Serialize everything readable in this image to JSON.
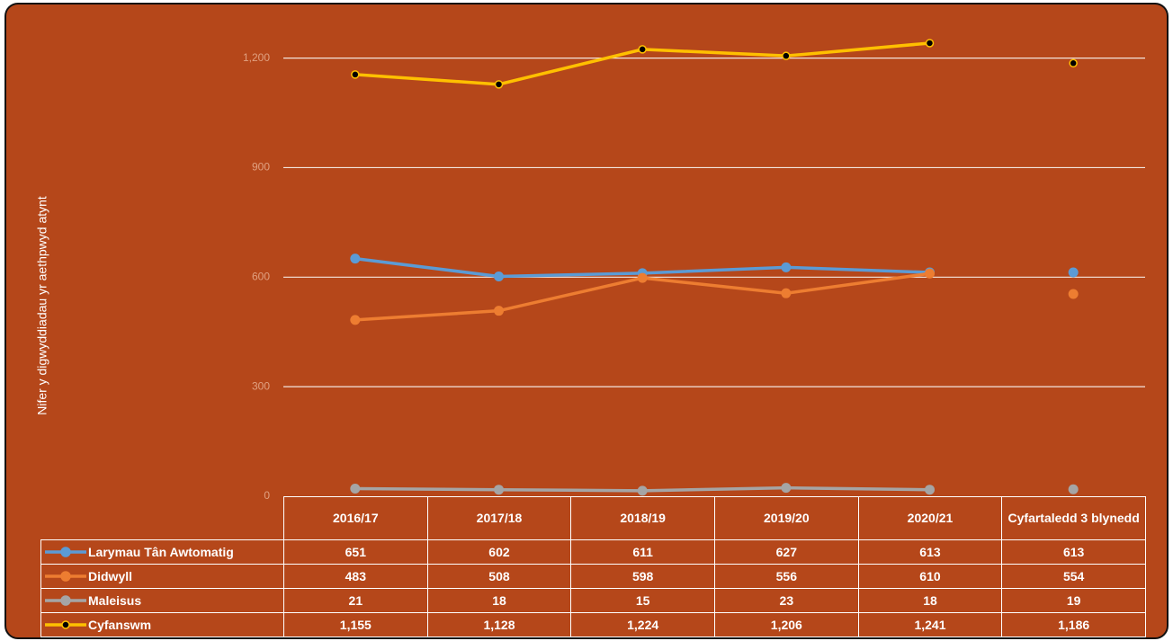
{
  "chart_data": {
    "type": "line",
    "y_label": "Nifer y digwyddiadau yr aethpwyd atynt",
    "categories": [
      "2016/17",
      "2017/18",
      "2018/19",
      "2019/20",
      "2020/21",
      "Cyfartaledd 3 blynedd"
    ],
    "series": [
      {
        "name": "Larymau Tân Awtomatig",
        "color": "#5b9bd5",
        "values": [
          651,
          602,
          611,
          627,
          613,
          613
        ]
      },
      {
        "name": "Didwyll",
        "color": "#ed7d31",
        "values": [
          483,
          508,
          598,
          556,
          610,
          554
        ]
      },
      {
        "name": "Maleisus",
        "color": "#a5a5a5",
        "values": [
          21,
          18,
          15,
          23,
          18,
          19
        ]
      },
      {
        "name": "Cyfanswm",
        "color": "#ffc000",
        "marker_color": "#000000",
        "values": [
          1155,
          1128,
          1224,
          1206,
          1241,
          1186
        ],
        "value_labels": [
          "1,155",
          "1,128",
          "1,224",
          "1,206",
          "1,241",
          "1,186"
        ]
      }
    ],
    "ylim": [
      0,
      1300
    ],
    "yticks": [
      0,
      300,
      600,
      900,
      {
        "value": 1200,
        "label": "1,200"
      }
    ],
    "grid": true,
    "connected_count": 5
  }
}
